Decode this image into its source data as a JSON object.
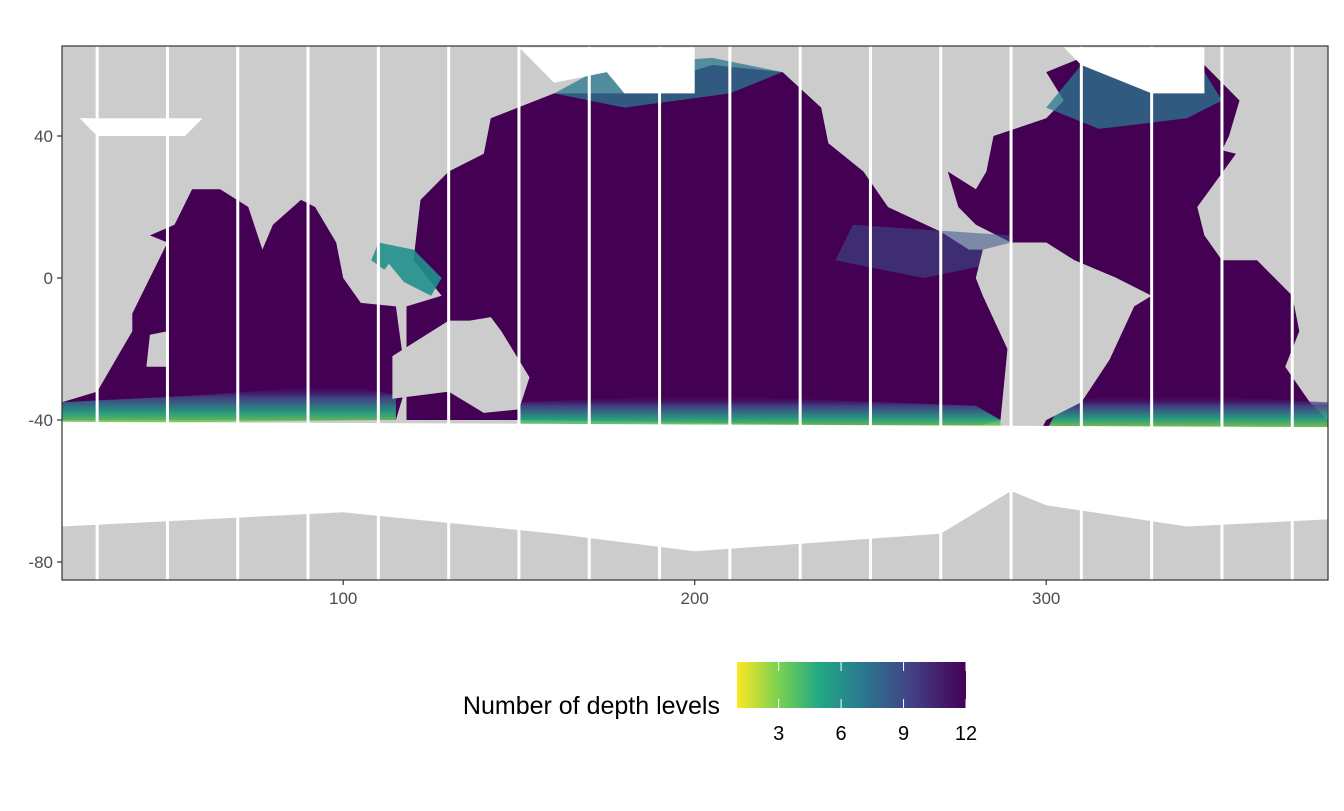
{
  "chart_data": {
    "type": "heatmap",
    "title": "",
    "xlabel": "",
    "ylabel": "",
    "xlim": [
      20,
      380
    ],
    "ylim": [
      -85,
      65
    ],
    "x_ticks": [
      100,
      200,
      300
    ],
    "y_ticks": [
      40,
      0,
      -40,
      -80
    ],
    "x_tick_labels": [
      "100",
      "200",
      "300"
    ],
    "y_tick_labels": [
      "40",
      "0",
      "-40",
      "-80"
    ],
    "grid": true,
    "fill_range": [
      1,
      12
    ],
    "colormap": "viridis (reversed)",
    "missing_longitude_columns": [
      30,
      50,
      70,
      90,
      110,
      130,
      150,
      170,
      190,
      210,
      230,
      250,
      270,
      290,
      310,
      330,
      350,
      370
    ]
  },
  "legend": {
    "title": "Number of depth levels",
    "position": "bottom",
    "ticks": [
      3,
      6,
      9,
      12
    ],
    "tick_labels": [
      "3",
      "6",
      "9",
      "12"
    ]
  },
  "colors": {
    "land": "#cccccc",
    "no_data": "#ffffff",
    "deep": "#440154",
    "mid": "#21918c",
    "shallow": "#fde725"
  }
}
